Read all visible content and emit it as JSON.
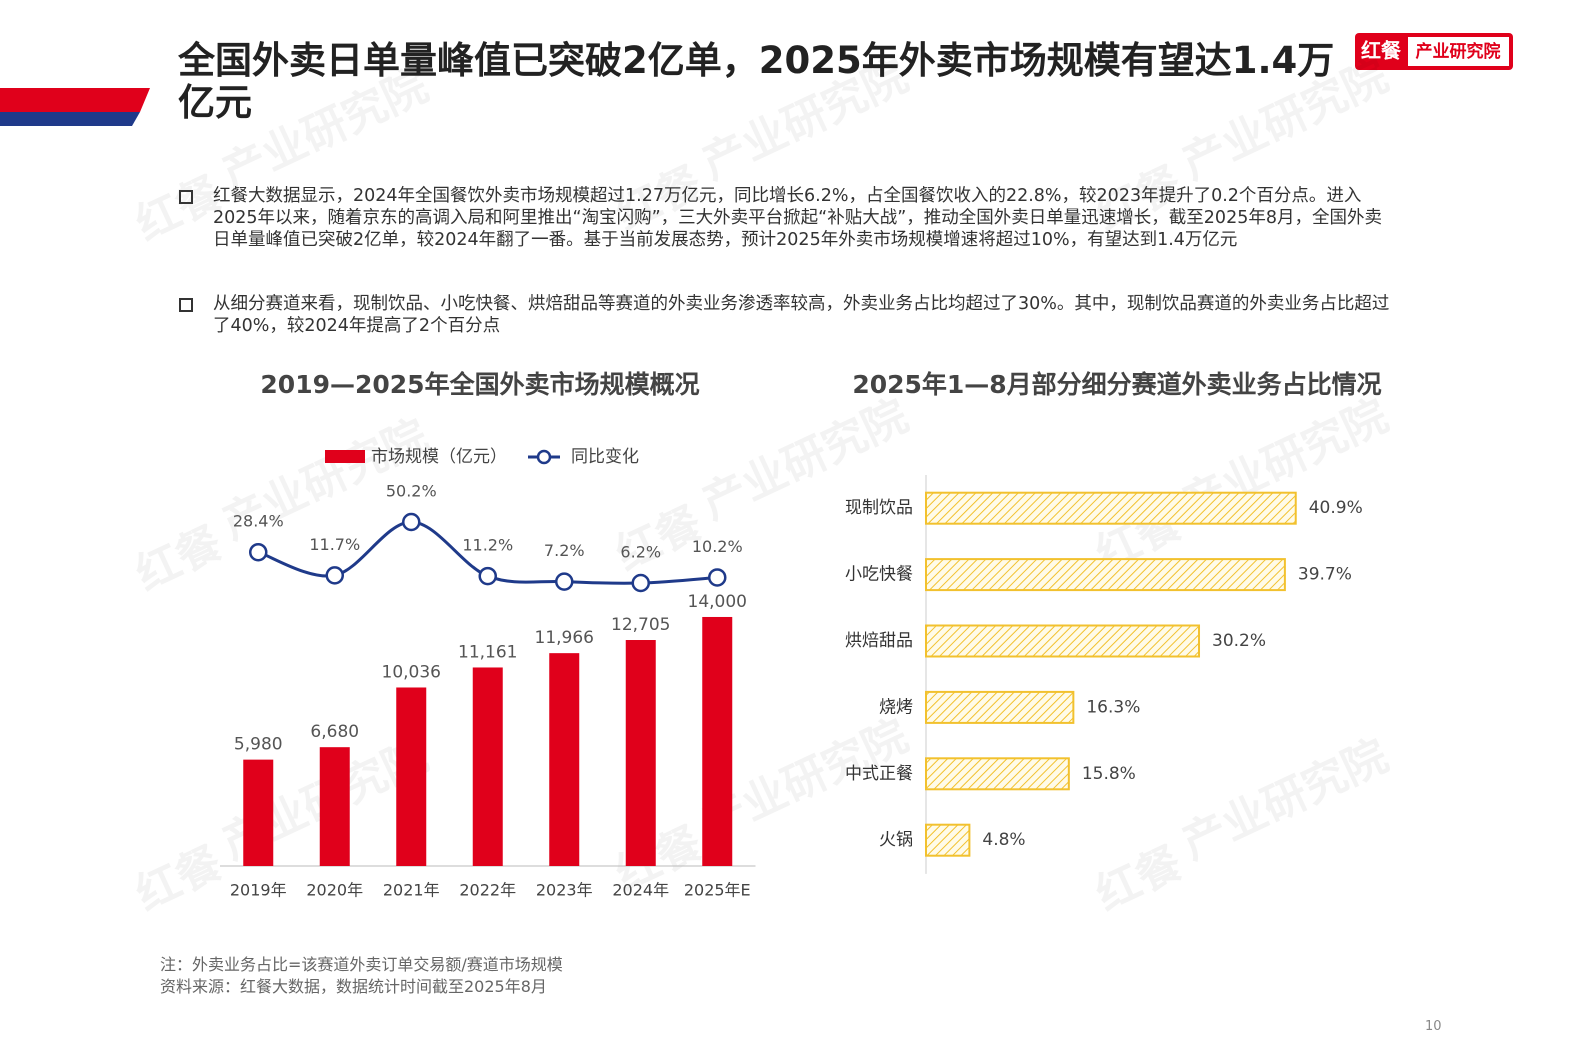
{
  "logo": {
    "brand": "红餐",
    "name": "产业研究院"
  },
  "header": {
    "title": "全国外卖日单量峰值已突破2亿单，2025年外卖市场规模有望达1.4万亿元"
  },
  "bullets": [
    "红餐大数据显示，2024年全国餐饮外卖市场规模超过1.27万亿元，同比增长6.2%，占全国餐饮收入的22.8%，较2023年提升了0.2个百分点。进入2025年以来，随着京东的高调入局和阿里推出“淘宝闪购”，三大外卖平台掀起“补贴大战”，推动全国外卖日单量迅速增长，截至2025年8月，全国外卖日单量峰值已突破2亿单，较2024年翻了一番。基于当前发展态势，预计2025年外卖市场规模增速将超过10%，有望达到1.4万亿元",
    "从细分赛道来看，现制饮品、小吃快餐、烘焙甜品等赛道的外卖业务渗透率较高，外卖业务占比均超过了30%。其中，现制饮品赛道的外卖业务占比超过了40%，较2024年提高了2个百分点"
  ],
  "chart_data": [
    {
      "type": "bar",
      "title": "2019—2025年全国外卖市场规模概况",
      "categories": [
        "2019年",
        "2020年",
        "2021年",
        "2022年",
        "2023年",
        "2024年",
        "2025年E"
      ],
      "series": [
        {
          "name": "市场规模（亿元）",
          "color": "#e0001b",
          "values": [
            5980,
            6680,
            10036,
            11161,
            11966,
            12705,
            14000
          ],
          "value_labels": [
            "5,980",
            "6,680",
            "10,036",
            "11,161",
            "11,966",
            "12,705",
            "14,000"
          ]
        },
        {
          "name": "同比变化",
          "type": "line",
          "axis": "y2",
          "color": "#1f3a8a",
          "values": [
            28.4,
            11.7,
            50.2,
            11.2,
            7.2,
            6.2,
            10.2
          ],
          "value_labels": [
            "28.4%",
            "11.7%",
            "50.2%",
            "11.2%",
            "7.2%",
            "6.2%",
            "10.2%"
          ]
        }
      ],
      "ylim": [
        0,
        16000
      ],
      "y2lim": [
        0,
        60
      ],
      "legend": "top"
    },
    {
      "type": "barh",
      "title": "2025年1—8月部分细分赛道外卖业务占比情况",
      "categories": [
        "现制饮品",
        "小吃快餐",
        "烘焙甜品",
        "烧烤",
        "中式正餐",
        "火锅"
      ],
      "values": [
        40.9,
        39.7,
        30.2,
        16.3,
        15.8,
        4.8
      ],
      "value_labels": [
        "40.9%",
        "39.7%",
        "30.2%",
        "16.3%",
        "15.8%",
        "4.8%"
      ],
      "color": "#f2c12e",
      "xlim": [
        0,
        50
      ]
    }
  ],
  "notes": [
    "注：外卖业务占比=该赛道外卖订单交易额/赛道市场规模",
    "资料来源：红餐大数据，数据统计时间截至2025年8月"
  ],
  "page_number": 10
}
